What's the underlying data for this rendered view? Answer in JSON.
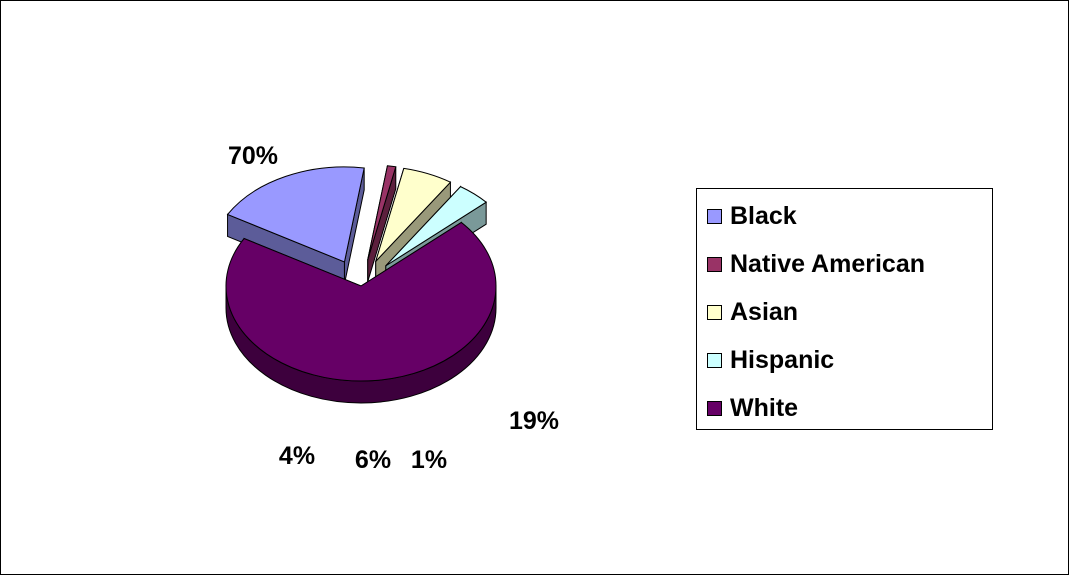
{
  "chart_data": {
    "type": "pie",
    "style": "3d-exploded",
    "title": "",
    "slices": [
      {
        "label": "Black",
        "value": 19,
        "display": "19%",
        "color": "#9999ff",
        "side": "#5c5c99"
      },
      {
        "label": "Native American",
        "value": 1,
        "display": "1%",
        "color": "#993366",
        "side": "#5c1f3d"
      },
      {
        "label": "Asian",
        "value": 6,
        "display": "6%",
        "color": "#ffffcc",
        "side": "#99997a"
      },
      {
        "label": "Hispanic",
        "value": 4,
        "display": "4%",
        "color": "#ccffff",
        "side": "#7a9999"
      },
      {
        "label": "White",
        "value": 70,
        "display": "70%",
        "color": "#660066",
        "side": "#3d003d"
      }
    ],
    "legend_position": "right"
  }
}
